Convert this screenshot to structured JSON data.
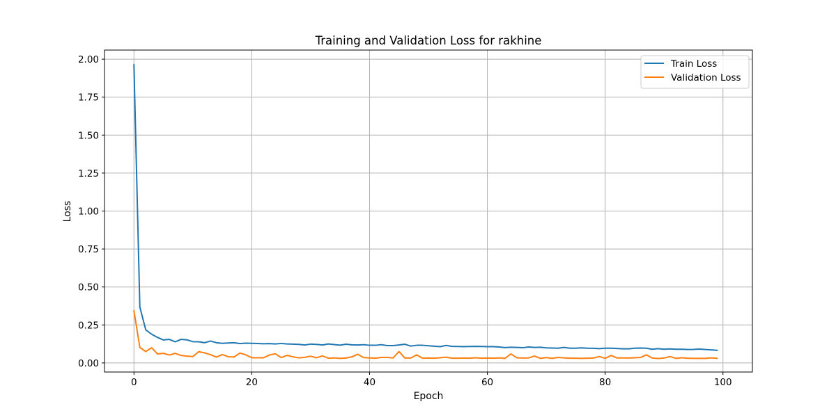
{
  "chart_data": {
    "type": "line",
    "title": "Training and Validation Loss for rakhine",
    "xlabel": "Epoch",
    "ylabel": "Loss",
    "xlim": [
      -5,
      105
    ],
    "ylim": [
      -0.06,
      2.06
    ],
    "xticks": [
      0,
      20,
      40,
      60,
      80,
      100
    ],
    "yticks": [
      0.0,
      0.25,
      0.5,
      0.75,
      1.0,
      1.25,
      1.5,
      1.75,
      2.0
    ],
    "xtick_labels": [
      "0",
      "20",
      "40",
      "60",
      "80",
      "100"
    ],
    "ytick_labels": [
      "0.00",
      "0.25",
      "0.50",
      "0.75",
      "1.00",
      "1.25",
      "1.50",
      "1.75",
      "2.00"
    ],
    "grid": true,
    "legend": "top-right",
    "series": [
      {
        "name": "Train Loss",
        "color": "#1f77b4",
        "values": [
          1.963,
          0.368,
          0.218,
          0.189,
          0.168,
          0.151,
          0.155,
          0.139,
          0.155,
          0.152,
          0.14,
          0.139,
          0.133,
          0.144,
          0.133,
          0.129,
          0.131,
          0.133,
          0.127,
          0.13,
          0.129,
          0.128,
          0.126,
          0.127,
          0.125,
          0.128,
          0.125,
          0.124,
          0.122,
          0.118,
          0.124,
          0.122,
          0.118,
          0.125,
          0.121,
          0.117,
          0.123,
          0.119,
          0.118,
          0.12,
          0.116,
          0.116,
          0.12,
          0.114,
          0.114,
          0.118,
          0.123,
          0.111,
          0.116,
          0.116,
          0.113,
          0.11,
          0.107,
          0.115,
          0.109,
          0.108,
          0.107,
          0.108,
          0.109,
          0.108,
          0.107,
          0.107,
          0.105,
          0.101,
          0.103,
          0.102,
          0.1,
          0.105,
          0.102,
          0.103,
          0.099,
          0.098,
          0.097,
          0.102,
          0.097,
          0.097,
          0.099,
          0.097,
          0.096,
          0.094,
          0.097,
          0.097,
          0.095,
          0.093,
          0.093,
          0.097,
          0.098,
          0.097,
          0.09,
          0.094,
          0.09,
          0.092,
          0.09,
          0.09,
          0.088,
          0.089,
          0.091,
          0.088,
          0.086,
          0.083
        ]
      },
      {
        "name": "Validation Loss",
        "color": "#ff7f0e",
        "values": [
          0.343,
          0.102,
          0.075,
          0.1,
          0.059,
          0.063,
          0.052,
          0.063,
          0.049,
          0.045,
          0.042,
          0.074,
          0.066,
          0.054,
          0.038,
          0.055,
          0.041,
          0.039,
          0.065,
          0.053,
          0.034,
          0.034,
          0.034,
          0.052,
          0.06,
          0.035,
          0.05,
          0.04,
          0.033,
          0.037,
          0.044,
          0.034,
          0.046,
          0.031,
          0.033,
          0.03,
          0.032,
          0.04,
          0.057,
          0.035,
          0.033,
          0.031,
          0.036,
          0.036,
          0.033,
          0.075,
          0.032,
          0.032,
          0.053,
          0.031,
          0.032,
          0.031,
          0.034,
          0.038,
          0.031,
          0.031,
          0.032,
          0.031,
          0.034,
          0.031,
          0.032,
          0.031,
          0.033,
          0.03,
          0.059,
          0.034,
          0.032,
          0.033,
          0.045,
          0.03,
          0.035,
          0.03,
          0.036,
          0.033,
          0.031,
          0.031,
          0.03,
          0.031,
          0.032,
          0.042,
          0.03,
          0.049,
          0.033,
          0.033,
          0.032,
          0.034,
          0.036,
          0.053,
          0.032,
          0.029,
          0.032,
          0.042,
          0.03,
          0.034,
          0.031,
          0.03,
          0.03,
          0.03,
          0.033,
          0.03
        ]
      }
    ]
  }
}
